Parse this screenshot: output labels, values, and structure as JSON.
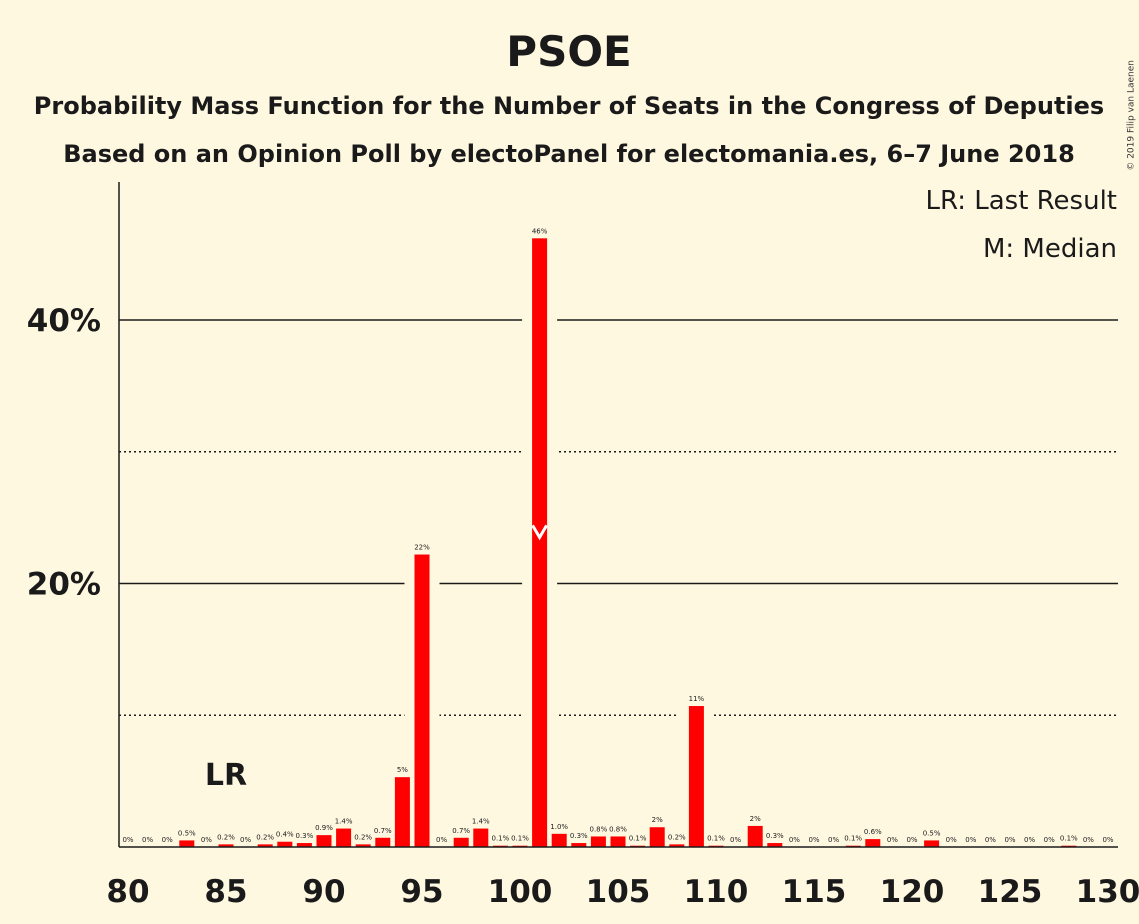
{
  "copyright": "© 2019 Filip van Laenen",
  "colors": {
    "bar": "#FF0000",
    "background": "#FFF8E1",
    "text": "#1a1a1a"
  },
  "chart_data": {
    "type": "bar",
    "title": "PSOE",
    "subtitle1": "Probability Mass Function for the Number of Seats in the Congress of Deputies",
    "subtitle2": "Based on an Opinion Poll by electoPanel for electomania.es, 6–7 June 2018",
    "legend": [
      "LR: Last Result",
      "M: Median"
    ],
    "legend_placement": "top-right",
    "xlim": [
      80,
      130
    ],
    "x_ticks": [
      80,
      85,
      90,
      95,
      100,
      105,
      110,
      115,
      120,
      125,
      130
    ],
    "ylim": [
      0,
      50
    ],
    "y_ticks_labeled": [
      {
        "value": 20,
        "label": "20%"
      },
      {
        "value": 40,
        "label": "40%"
      }
    ],
    "y_grid_solid": [
      20,
      40
    ],
    "y_grid_dotted": [
      10,
      30
    ],
    "last_result": {
      "x": 85,
      "label": "LR"
    },
    "median": {
      "x": 101
    },
    "bars": [
      {
        "x": 80,
        "value": 0,
        "label": "0%"
      },
      {
        "x": 81,
        "value": 0,
        "label": "0%"
      },
      {
        "x": 82,
        "value": 0,
        "label": "0%"
      },
      {
        "x": 83,
        "value": 0.5,
        "label": "0.5%"
      },
      {
        "x": 84,
        "value": 0,
        "label": "0%"
      },
      {
        "x": 85,
        "value": 0.2,
        "label": "0.2%"
      },
      {
        "x": 86,
        "value": 0,
        "label": "0%"
      },
      {
        "x": 87,
        "value": 0.2,
        "label": "0.2%"
      },
      {
        "x": 88,
        "value": 0.4,
        "label": "0.4%"
      },
      {
        "x": 89,
        "value": 0.3,
        "label": "0.3%"
      },
      {
        "x": 90,
        "value": 0.9,
        "label": "0.9%"
      },
      {
        "x": 91,
        "value": 1.4,
        "label": "1.4%"
      },
      {
        "x": 92,
        "value": 0.2,
        "label": "0.2%"
      },
      {
        "x": 93,
        "value": 0.7,
        "label": "0.7%"
      },
      {
        "x": 94,
        "value": 5.3,
        "label": "5%"
      },
      {
        "x": 95,
        "value": 22.2,
        "label": "22%"
      },
      {
        "x": 96,
        "value": 0,
        "label": "0%"
      },
      {
        "x": 97,
        "value": 0.7,
        "label": "0.7%"
      },
      {
        "x": 98,
        "value": 1.4,
        "label": "1.4%"
      },
      {
        "x": 99,
        "value": 0.1,
        "label": "0.1%"
      },
      {
        "x": 100,
        "value": 0.1,
        "label": "0.1%"
      },
      {
        "x": 101,
        "value": 46.2,
        "label": "46%"
      },
      {
        "x": 102,
        "value": 1.0,
        "label": "1.0%"
      },
      {
        "x": 103,
        "value": 0.3,
        "label": "0.3%"
      },
      {
        "x": 104,
        "value": 0.8,
        "label": "0.8%"
      },
      {
        "x": 105,
        "value": 0.8,
        "label": "0.8%"
      },
      {
        "x": 106,
        "value": 0.1,
        "label": "0.1%"
      },
      {
        "x": 107,
        "value": 1.5,
        "label": "2%"
      },
      {
        "x": 108,
        "value": 0.2,
        "label": "0.2%"
      },
      {
        "x": 109,
        "value": 10.7,
        "label": "11%"
      },
      {
        "x": 110,
        "value": 0.1,
        "label": "0.1%"
      },
      {
        "x": 111,
        "value": 0,
        "label": "0%"
      },
      {
        "x": 112,
        "value": 1.6,
        "label": "2%"
      },
      {
        "x": 113,
        "value": 0.3,
        "label": "0.3%"
      },
      {
        "x": 114,
        "value": 0,
        "label": "0%"
      },
      {
        "x": 115,
        "value": 0,
        "label": "0%"
      },
      {
        "x": 116,
        "value": 0,
        "label": "0%"
      },
      {
        "x": 117,
        "value": 0.1,
        "label": "0.1%"
      },
      {
        "x": 118,
        "value": 0.6,
        "label": "0.6%"
      },
      {
        "x": 119,
        "value": 0,
        "label": "0%"
      },
      {
        "x": 120,
        "value": 0,
        "label": "0%"
      },
      {
        "x": 121,
        "value": 0.5,
        "label": "0.5%"
      },
      {
        "x": 122,
        "value": 0,
        "label": "0%"
      },
      {
        "x": 123,
        "value": 0,
        "label": "0%"
      },
      {
        "x": 124,
        "value": 0,
        "label": "0%"
      },
      {
        "x": 125,
        "value": 0,
        "label": "0%"
      },
      {
        "x": 126,
        "value": 0,
        "label": "0%"
      },
      {
        "x": 127,
        "value": 0,
        "label": "0%"
      },
      {
        "x": 128,
        "value": 0.1,
        "label": "0.1%"
      },
      {
        "x": 129,
        "value": 0,
        "label": "0%"
      },
      {
        "x": 130,
        "value": 0,
        "label": "0%"
      }
    ]
  }
}
